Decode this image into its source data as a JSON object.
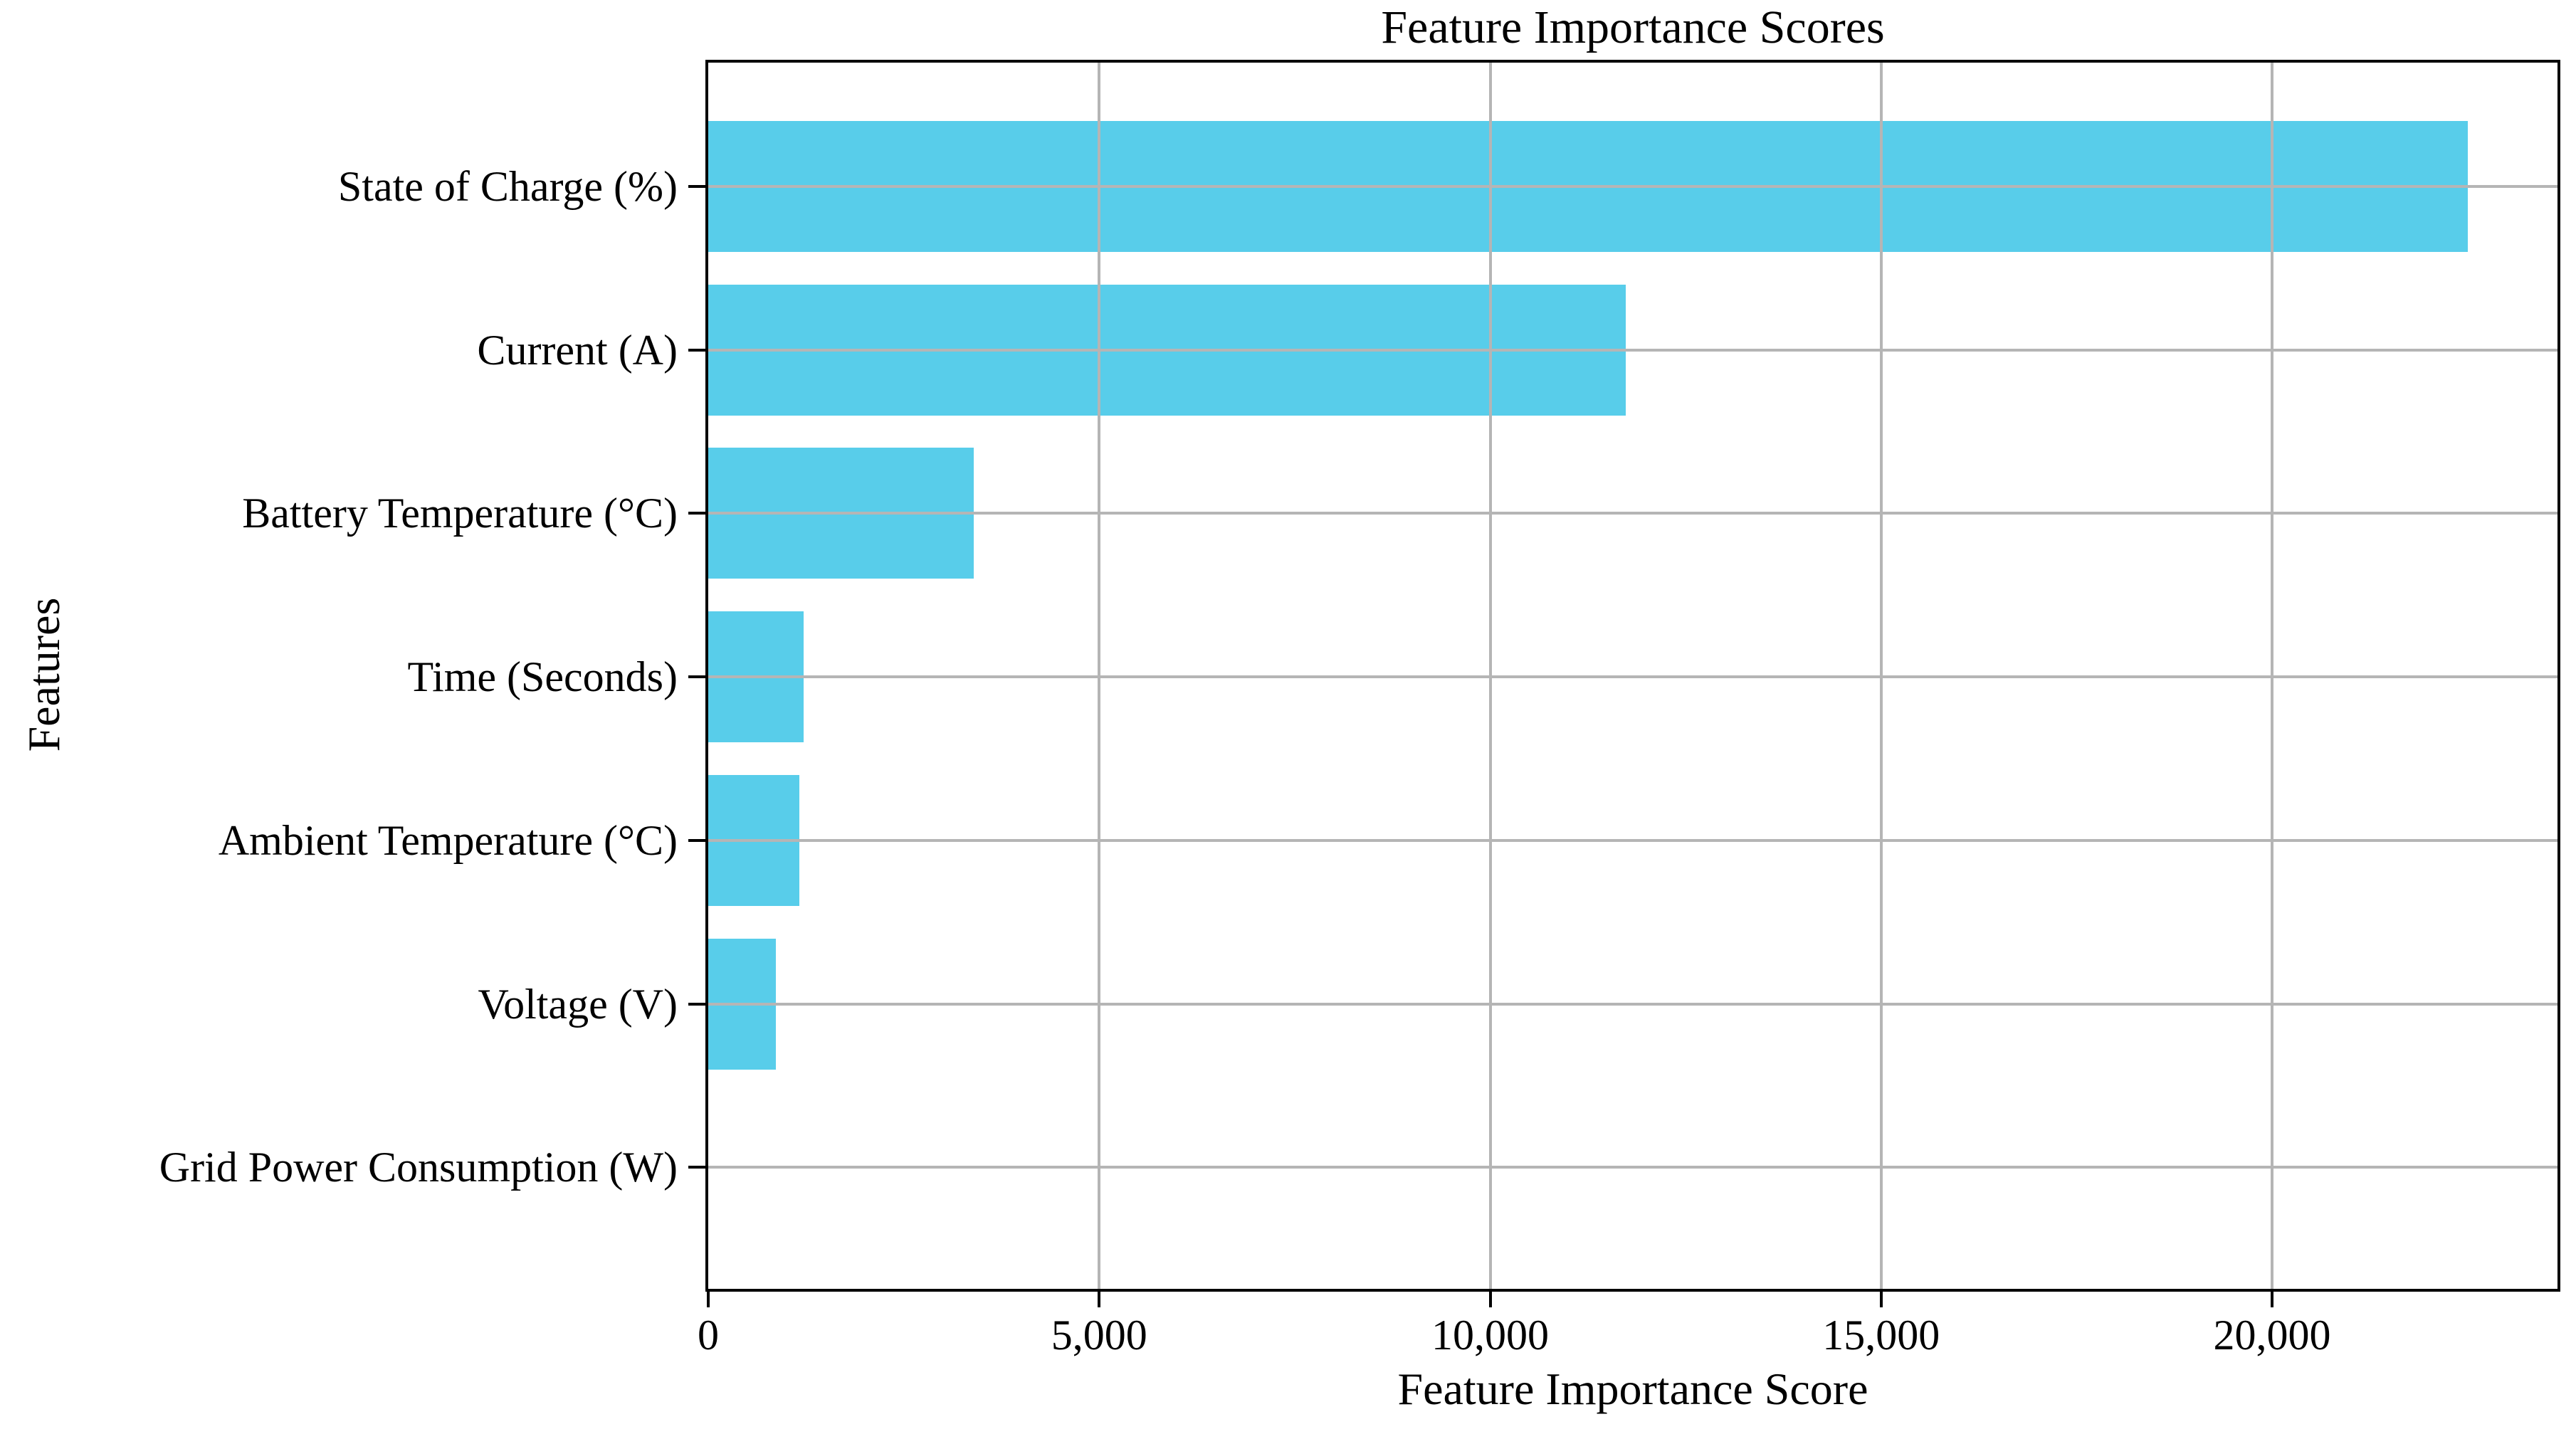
{
  "figure": {
    "background": "#ffffff",
    "text_color": "#000000"
  },
  "chart_data": {
    "type": "bar",
    "orientation": "horizontal",
    "title": "Feature Importance Scores",
    "xlabel": "Feature Importance Score",
    "ylabel": "Features",
    "categories": [
      "State of Charge (%)",
      "Current (A)",
      "Battery Temperature (°C)",
      "Time (Seconds)",
      "Ambient Temperature (°C)",
      "Voltage (V)",
      "Grid Power Consumption (W)"
    ],
    "values": [
      22500,
      11730,
      3400,
      1220,
      1165,
      865,
      0
    ],
    "xlim": [
      0,
      23650
    ],
    "xticks": [
      0,
      5000,
      10000,
      15000,
      20000
    ],
    "xtick_labels": [
      "0",
      "5,000",
      "10,000",
      "15,000",
      "20,000"
    ],
    "grid": true,
    "grid_over_bars": true,
    "legend": "none",
    "bar_color": "#58CDEA",
    "grid_color": "#b5b5b5",
    "axis_color": "#000000"
  }
}
